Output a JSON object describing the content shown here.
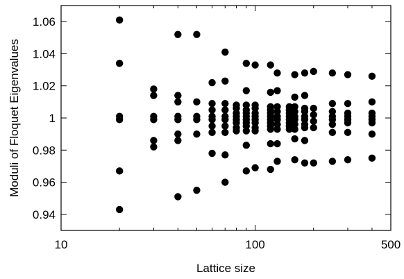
{
  "chart_data": {
    "type": "scatter",
    "title": "",
    "xlabel": "Lattice size",
    "ylabel": "Moduli of Floquet Eigenvalues",
    "x_scale": "log",
    "xlim": [
      10,
      500
    ],
    "ylim": [
      0.93,
      1.07
    ],
    "x_ticks": [
      10,
      100,
      500
    ],
    "x_tick_labels": [
      "10",
      "100",
      "500"
    ],
    "y_ticks": [
      0.94,
      0.96,
      0.98,
      1.0,
      1.02,
      1.04,
      1.06
    ],
    "y_tick_labels": [
      "0.94",
      "0.96",
      "0.98",
      "1",
      "1.02",
      "1.04",
      "1.06"
    ],
    "grid": false,
    "legend": "none",
    "colors": {
      "marker": "#000000",
      "axes": "#000000"
    },
    "points": [
      {
        "x": 20,
        "y": [
          1.061,
          1.034,
          1.001,
          0.999,
          0.967,
          0.943
        ]
      },
      {
        "x": 30,
        "y": [
          1.018,
          1.014,
          1.001,
          0.999,
          0.986,
          0.982
        ]
      },
      {
        "x": 40,
        "y": [
          1.052,
          1.014,
          1.01,
          1.001,
          0.999,
          0.99,
          0.986,
          0.951
        ]
      },
      {
        "x": 50,
        "y": [
          1.052,
          1.01,
          1.001,
          0.999,
          0.99,
          0.955
        ]
      },
      {
        "x": 60,
        "y": [
          1.022,
          1.009,
          1.005,
          1.001,
          0.999,
          0.995,
          0.991,
          0.978
        ]
      },
      {
        "x": 70,
        "y": [
          1.041,
          1.023,
          1.009,
          1.005,
          1.001,
          0.999,
          0.995,
          0.991,
          0.977,
          0.96
        ]
      },
      {
        "x": 80,
        "y": [
          1.008,
          1.006,
          1.003,
          1.001,
          0.999,
          0.997,
          0.994,
          0.992
        ]
      },
      {
        "x": 90,
        "y": [
          1.034,
          1.017,
          1.008,
          1.005,
          1.003,
          1.001,
          0.999,
          0.997,
          0.995,
          0.992,
          0.983,
          0.967
        ]
      },
      {
        "x": 100,
        "y": [
          1.033,
          1.008,
          1.006,
          1.003,
          1.001,
          0.999,
          0.997,
          0.994,
          0.992,
          0.969
        ]
      },
      {
        "x": 120,
        "y": [
          1.033,
          1.016,
          1.007,
          1.005,
          1.003,
          1.001,
          0.999,
          0.997,
          0.995,
          0.993,
          0.984,
          0.968
        ]
      },
      {
        "x": 130,
        "y": [
          1.028,
          1.017,
          1.007,
          1.004,
          1.001,
          0.999,
          0.996,
          0.993,
          0.984,
          0.973
        ]
      },
      {
        "x": 150,
        "y": [
          1.007,
          1.005,
          1.003,
          1.001,
          0.999,
          0.997,
          0.995,
          0.993
        ]
      },
      {
        "x": 160,
        "y": [
          1.027,
          1.013,
          1.007,
          1.004,
          1.001,
          0.999,
          0.996,
          0.993,
          0.987,
          0.974
        ]
      },
      {
        "x": 180,
        "y": [
          1.028,
          1.014,
          1.006,
          1.004,
          1.001,
          0.999,
          0.996,
          0.994,
          0.986,
          0.972
        ]
      },
      {
        "x": 200,
        "y": [
          1.029,
          1.006,
          1.002,
          0.998,
          0.994,
          0.972
        ]
      },
      {
        "x": 250,
        "y": [
          1.028,
          1.009,
          1.004,
          1.001,
          0.999,
          0.996,
          0.991,
          0.973
        ]
      },
      {
        "x": 300,
        "y": [
          1.027,
          1.009,
          1.003,
          1.001,
          0.999,
          0.997,
          0.991,
          0.974
        ]
      },
      {
        "x": 400,
        "y": [
          1.026,
          1.01,
          1.003,
          1.001,
          0.999,
          0.997,
          0.99,
          0.975
        ]
      }
    ]
  }
}
